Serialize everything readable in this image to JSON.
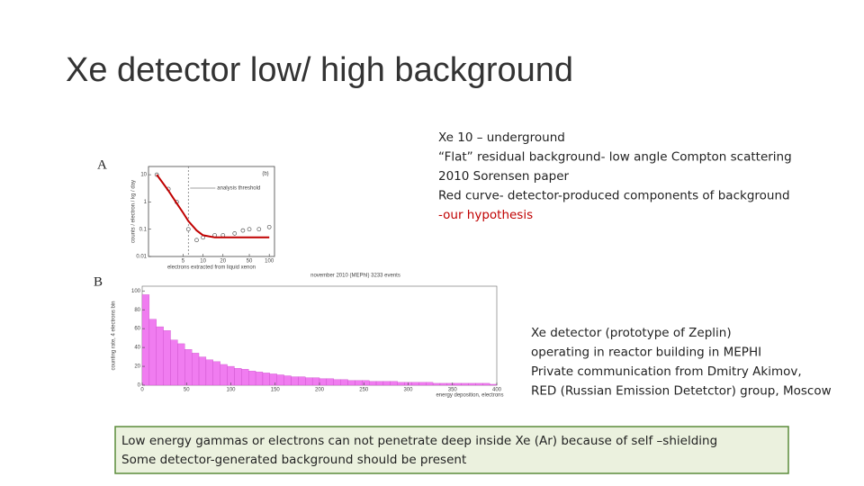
{
  "title": "Xe detector low/ high background",
  "notes_a": [
    "Xe 10 – underground",
    "“Flat” residual background- low angle Compton scattering",
    "2010 Sorensen paper",
    "Red curve- detector-produced  components of background",
    " -our hypothesis"
  ],
  "label_a": "A",
  "label_b": "B",
  "notes_b": [
    "Xe detector (prototype of Zeplin)",
    "operating in reactor building in MEPHI",
    "Private communication from Dmitry Akimov,",
    "RED (Russian Emission Detetctor) group, Moscow"
  ],
  "box": [
    "Low energy gammas or electrons can not penetrate deep inside Xe (Ar)  because of self –shielding",
    "Some detector-generated background should be present"
  ],
  "chart_data": [
    {
      "type": "line",
      "panel": "(b)",
      "annotation": "analysis threshold",
      "threshold": 6,
      "x_label": "electrons extracted from liquid xenon",
      "y_label": "counts / electron / kg / day",
      "xscale": "log",
      "yscale": "log",
      "xlim": [
        1.5,
        120
      ],
      "ylim": [
        0.01,
        20
      ],
      "xticks": [
        5,
        10,
        20,
        50,
        100
      ],
      "yticks": [
        0.01,
        0.1,
        1,
        10
      ],
      "series": [
        {
          "color": "#555555",
          "x": [
            2,
            3,
            4,
            6,
            8,
            10,
            15,
            20,
            30,
            40,
            50,
            70,
            100
          ],
          "values": [
            10,
            3,
            1,
            0.1,
            0.04,
            0.05,
            0.06,
            0.06,
            0.07,
            0.09,
            0.1,
            0.1,
            0.12
          ]
        },
        {
          "color": "#c00000",
          "x": [
            2,
            3,
            4,
            5,
            6,
            8,
            10,
            15,
            20,
            30,
            50,
            100
          ],
          "values": [
            10,
            2.6,
            0.9,
            0.4,
            0.2,
            0.09,
            0.06,
            0.05,
            0.05,
            0.05,
            0.05,
            0.05
          ]
        }
      ]
    },
    {
      "type": "histogram",
      "title": "november 2010 (MEPhI) 3233 events",
      "x_label": "energy deposition, electrons",
      "y_label": "counting rate, 4 electrons bin",
      "color": "#f07cf0",
      "xlim": [
        0,
        400
      ],
      "ylim": [
        0,
        105
      ],
      "xticks": [
        0,
        50,
        100,
        150,
        200,
        250,
        300,
        350,
        400
      ],
      "yticks": [
        0,
        20,
        40,
        60,
        80,
        100
      ],
      "bins": [
        0,
        8,
        16,
        24,
        32,
        40,
        48,
        56,
        64,
        72,
        80,
        88,
        96,
        104,
        112,
        120,
        128,
        136,
        144,
        152,
        160,
        168,
        176,
        184,
        192,
        200,
        208,
        216,
        224,
        232,
        240,
        248,
        256,
        264,
        272,
        280,
        288,
        296,
        304,
        312,
        320,
        328,
        336,
        344,
        352,
        360,
        368,
        376,
        384,
        392,
        400
      ],
      "values": [
        96,
        70,
        62,
        58,
        48,
        44,
        38,
        34,
        30,
        27,
        25,
        22,
        20,
        18,
        17,
        15,
        14,
        13,
        12,
        11,
        10,
        9,
        9,
        8,
        8,
        7,
        7,
        6,
        6,
        5,
        5,
        5,
        4,
        4,
        4,
        4,
        3,
        3,
        3,
        3,
        3,
        2,
        2,
        2,
        2,
        2,
        2,
        2,
        2,
        1
      ]
    }
  ]
}
